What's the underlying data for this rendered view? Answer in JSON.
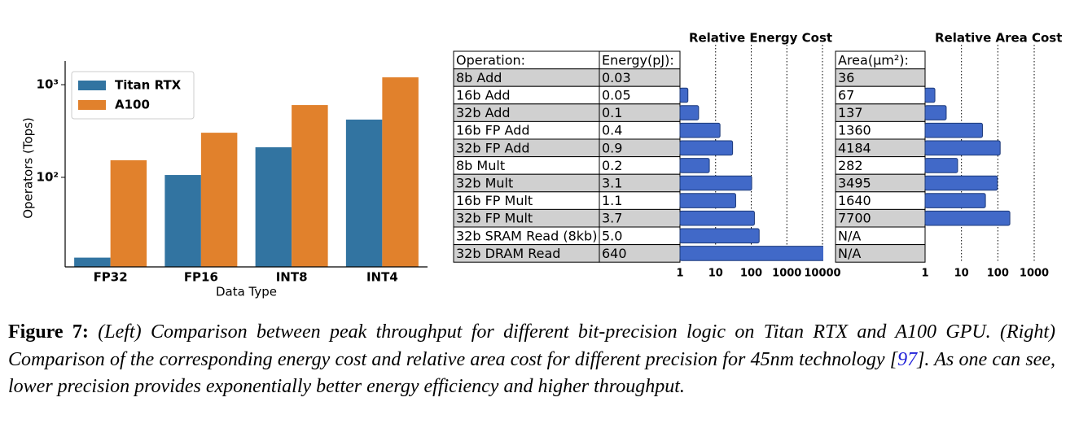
{
  "chart_data": [
    {
      "type": "bar",
      "categories": [
        "FP32",
        "FP16",
        "INT8",
        "INT4"
      ],
      "series": [
        {
          "name": "Titan RTX",
          "color": "#3274a1",
          "values": [
            13.6,
            106,
            211,
            420
          ]
        },
        {
          "name": "A100",
          "color": "#e1812c",
          "values": [
            153,
            303,
            603,
            1200
          ]
        }
      ],
      "xlabel": "Data Type",
      "ylabel": "Operators (Tops)",
      "ylog": true,
      "ylim": [
        10.8,
        1800
      ],
      "yticks": [
        {
          "value": 100,
          "label": "10²"
        },
        {
          "value": 1000,
          "label": "10³"
        }
      ],
      "legend": "upper left"
    },
    {
      "type": "table_bar",
      "columns": [
        "Operation:",
        "Energy(pJ):",
        "Area(μm²):"
      ],
      "rows": [
        [
          "8b Add",
          "0.03",
          "36"
        ],
        [
          "16b Add",
          "0.05",
          "67"
        ],
        [
          "32b Add",
          "0.1",
          "137"
        ],
        [
          "16b FP Add",
          "0.4",
          "1360"
        ],
        [
          "32b FP Add",
          "0.9",
          "4184"
        ],
        [
          "8b Mult",
          "0.2",
          "282"
        ],
        [
          "32b Mult",
          "3.1",
          "3495"
        ],
        [
          "16b FP Mult",
          "1.1",
          "1640"
        ],
        [
          "32b FP Mult",
          "3.7",
          "7700"
        ],
        [
          "32b SRAM Read (8kb)",
          "5.0",
          "N/A"
        ],
        [
          "32b DRAM Read",
          "640",
          "N/A"
        ]
      ],
      "color": "#4169c8",
      "energy_bars": {
        "title": "Relative Energy Cost",
        "values": [
          1,
          1.67,
          3.33,
          13.3,
          30,
          6.67,
          103,
          36.7,
          123,
          167,
          21333
        ],
        "xlog": true,
        "xlim": [
          1,
          10000
        ],
        "xticks": [
          1,
          10,
          100,
          1000,
          10000
        ]
      },
      "area_bars": {
        "title": "Relative Area Cost",
        "values": [
          1,
          1.86,
          3.81,
          37.8,
          116,
          7.83,
          97.1,
          45.6,
          214,
          null,
          null
        ],
        "xlog": true,
        "xlim": [
          1,
          1000
        ],
        "xticks": [
          1,
          10,
          100,
          1000
        ]
      }
    }
  ],
  "caption": {
    "label": "Figure 7:",
    "text": "(Left) Comparison between peak throughput for different bit-precision logic on Titan RTX and A100 GPU. (Right) Comparison of the corresponding energy cost and relative area cost for different precision for 45nm technology [",
    "ref": "97",
    "text_end": "]. As one can see, lower precision provides exponentially better energy efficiency and higher throughput."
  }
}
